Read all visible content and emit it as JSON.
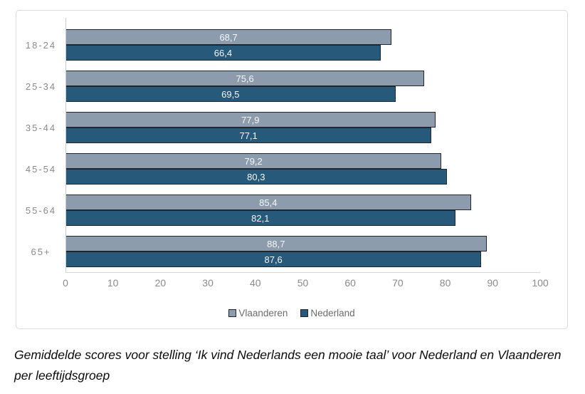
{
  "chart_data": {
    "type": "bar",
    "orientation": "horizontal",
    "title": "",
    "categories": [
      "18-24",
      "25-34",
      "35-44",
      "45-54",
      "55-64",
      "65+"
    ],
    "series": [
      {
        "name": "Vlaanderen",
        "color": "#8c9cac",
        "values": [
          68.7,
          75.6,
          77.9,
          79.2,
          85.4,
          88.7
        ],
        "labels": [
          "68,7",
          "75,6",
          "77,9",
          "79,2",
          "85,4",
          "88,7"
        ]
      },
      {
        "name": "Nederland",
        "color": "#26597a",
        "values": [
          66.4,
          69.5,
          77.1,
          80.3,
          82.1,
          87.6
        ],
        "labels": [
          "66,4",
          "69,5",
          "77,1",
          "80,3",
          "82,1",
          "87,6"
        ]
      }
    ],
    "xlim": [
      0,
      100
    ],
    "xticks": [
      "0",
      "10",
      "20",
      "30",
      "40",
      "50",
      "60",
      "70",
      "80",
      "90",
      "100"
    ],
    "grid": false,
    "legend_position": "bottom-center",
    "bar_border_color": "#1f2630",
    "value_label_color": "#f4f6f8",
    "box_border_color": "#dcdcdc"
  },
  "caption": "Gemiddelde scores voor stelling ‘Ik vind Nederlands een mooie taal’ voor Nederland en Vlaanderen per leeftijdsgroep"
}
